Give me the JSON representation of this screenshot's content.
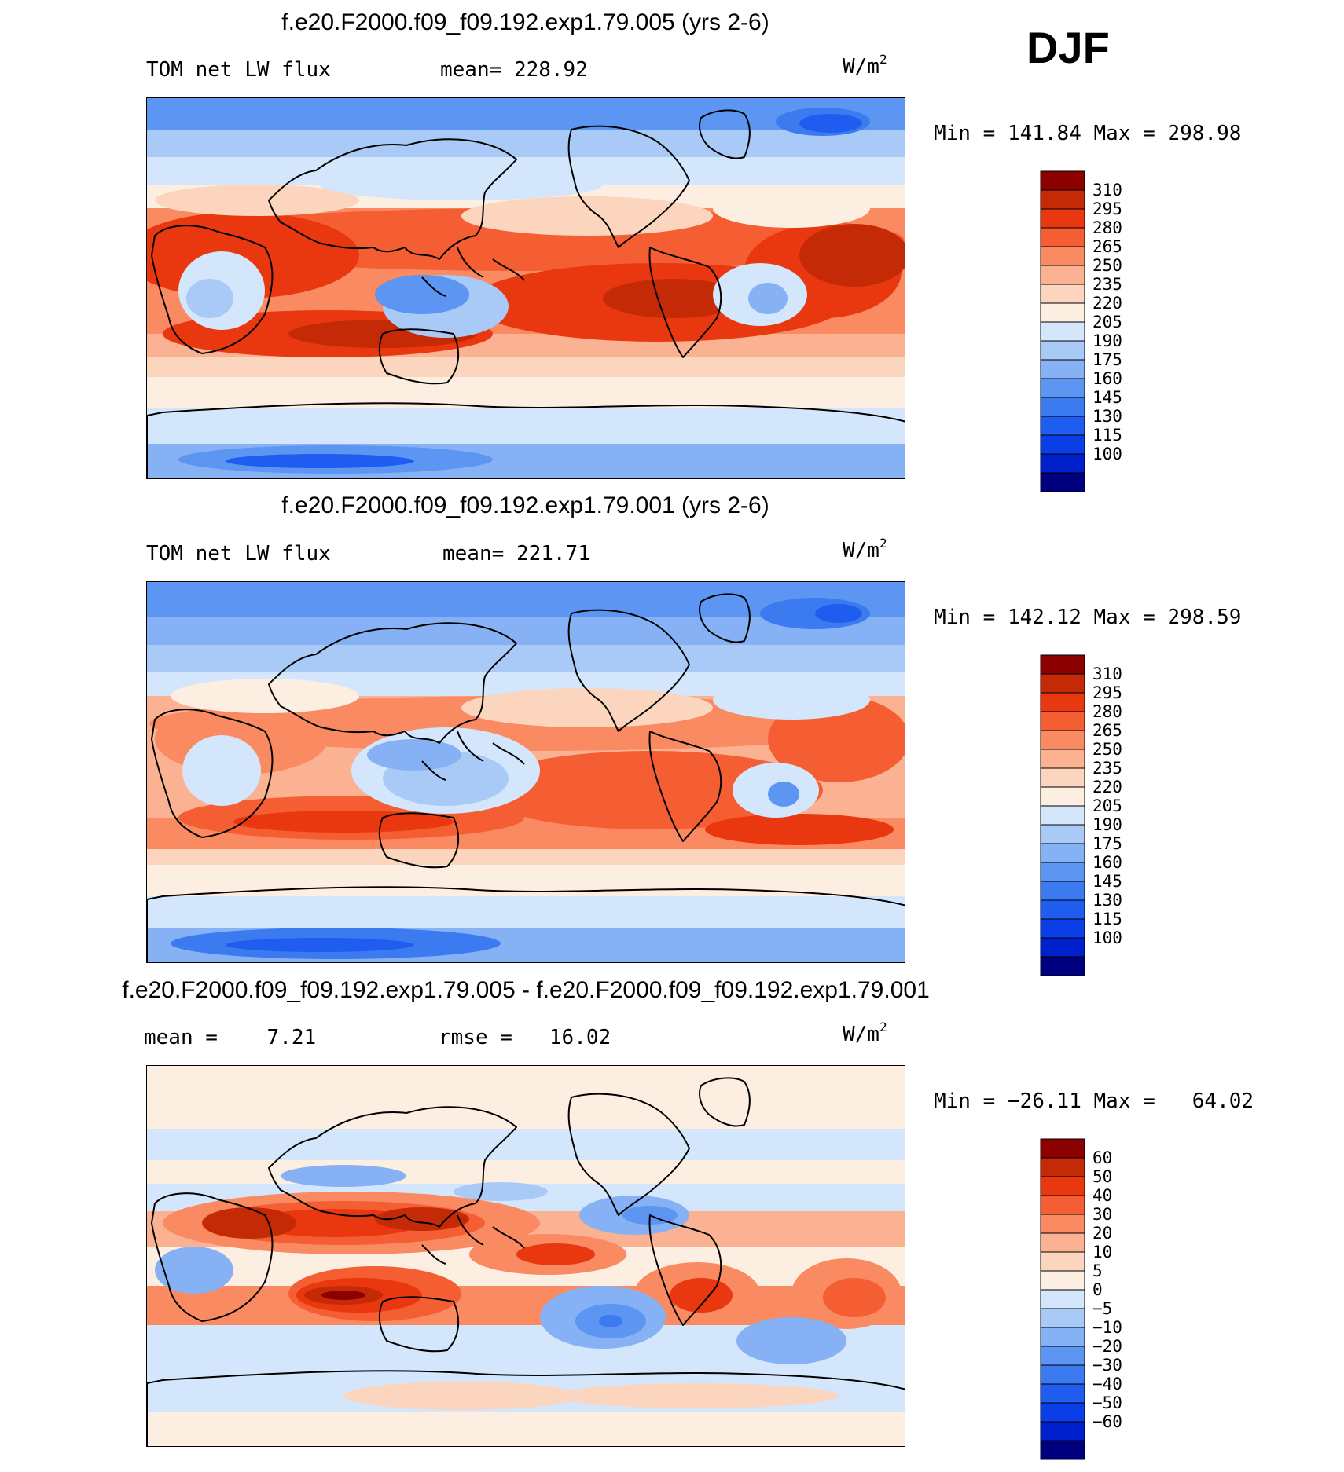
{
  "season": "DJF",
  "colors": {
    "abs": [
      "#00007f",
      "#0020cc",
      "#0a3ee6",
      "#1f5df0",
      "#3c7af0",
      "#5c95f2",
      "#86b1f5",
      "#a9c9f7",
      "#d4e6fb",
      "#fdeee2",
      "#fcd5bf",
      "#fbb292",
      "#f98a62",
      "#f55e32",
      "#e93810",
      "#c52a06",
      "#8d0000"
    ],
    "diff": [
      "#00007f",
      "#0020cc",
      "#0a3ee6",
      "#1f5df0",
      "#3c7af0",
      "#5c95f2",
      "#86b1f5",
      "#a9c9f7",
      "#d4e6fb",
      "#fdeee2",
      "#fcd5bf",
      "#fbb292",
      "#f98a62",
      "#f55e32",
      "#e93810",
      "#c52a06",
      "#8d0000"
    ]
  },
  "panels": [
    {
      "id": "test",
      "title": "f.e20.F2000.f09_f09.192.exp1.79.005 (yrs 2-6)",
      "left_label": "TOM net LW flux",
      "stat_label": "mean=",
      "stat_value": "228.92",
      "units_base": "W/m",
      "units_exp": "2",
      "min_label": "Min",
      "min_value": "141.84",
      "max_label": "Max",
      "max_value": "298.98"
    },
    {
      "id": "control",
      "title": "f.e20.F2000.f09_f09.192.exp1.79.001 (yrs 2-6)",
      "left_label": "TOM net LW flux",
      "stat_label": "mean=",
      "stat_value": "221.71",
      "units_base": "W/m",
      "units_exp": "2",
      "min_label": "Min",
      "min_value": "142.12",
      "max_label": "Max",
      "max_value": "298.59"
    },
    {
      "id": "difference",
      "title": "f.e20.F2000.f09_f09.192.exp1.79.005 - f.e20.F2000.f09_f09.192.exp1.79.001",
      "left_label": "mean =",
      "left_value": "7.21",
      "stat_label": "rmse =",
      "stat_value": "16.02",
      "units_base": "W/m",
      "units_exp": "2",
      "min_label": "Min",
      "min_value": "−26.11",
      "max_label": "Max",
      "max_value": "64.02"
    }
  ],
  "chart_data": [
    {
      "type": "heatmap",
      "title": "f.e20.F2000.f09_f09.192.exp1.79.005 (yrs 2-6)",
      "variable": "TOM net LW flux",
      "units": "W/m2",
      "mean": 228.92,
      "min": 141.84,
      "max": 298.98,
      "legend_levels": [
        "310",
        "295",
        "280",
        "265",
        "250",
        "235",
        "220",
        "205",
        "190",
        "175",
        "160",
        "145",
        "130",
        "115",
        "100"
      ]
    },
    {
      "type": "heatmap",
      "title": "f.e20.F2000.f09_f09.192.exp1.79.001 (yrs 2-6)",
      "variable": "TOM net LW flux",
      "units": "W/m2",
      "mean": 221.71,
      "min": 142.12,
      "max": 298.59,
      "legend_levels": [
        "310",
        "295",
        "280",
        "265",
        "250",
        "235",
        "220",
        "205",
        "190",
        "175",
        "160",
        "145",
        "130",
        "115",
        "100"
      ]
    },
    {
      "type": "heatmap",
      "title": "f.e20.F2000.f09_f09.192.exp1.79.005 - f.e20.F2000.f09_f09.192.exp1.79.001",
      "units": "W/m2",
      "mean": 7.21,
      "rmse": 16.02,
      "min": -26.11,
      "max": 64.02,
      "legend_levels": [
        "60",
        "50",
        "40",
        "30",
        "20",
        "10",
        "5",
        "0",
        "−5",
        "−10",
        "−20",
        "−30",
        "−40",
        "−50",
        "−60"
      ]
    }
  ]
}
